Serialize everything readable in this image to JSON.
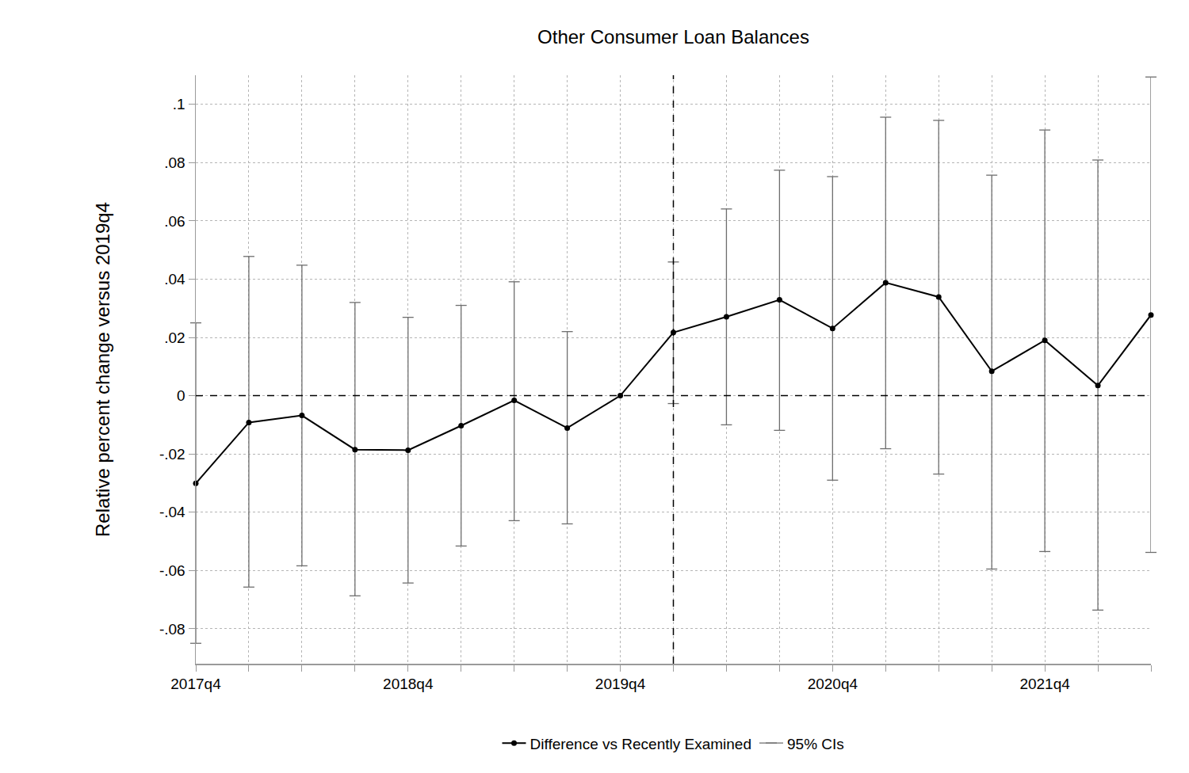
{
  "chart_data": {
    "type": "line",
    "title": "Other Consumer Loan Balances",
    "y_label": "Relative percent change versus 2019q4",
    "categories": [
      "2017q4",
      null,
      null,
      null,
      "2018q4",
      null,
      null,
      null,
      "2019q4",
      null,
      null,
      null,
      "2020q4",
      null,
      null,
      null,
      "2021q4",
      null,
      null
    ],
    "series": [
      {
        "name": "Difference vs Recently Examined",
        "color": "#000000",
        "marker": "circle",
        "line_style": "solid",
        "values": [
          -0.0301,
          -0.0092,
          -0.0068,
          -0.0185,
          -0.0187,
          -0.0103,
          -0.0016,
          -0.0111,
          0,
          0.0217,
          0.0271,
          0.0329,
          0.0231,
          0.0388,
          0.0339,
          0.0084,
          0.019,
          0.0035,
          0.0277
        ],
        "ci_name": "95% CIs",
        "ci_upper": [
          0.025,
          0.0478,
          0.0448,
          0.032,
          0.0269,
          0.031,
          0.0391,
          0.022,
          null,
          0.0459,
          0.0641,
          0.0774,
          0.0752,
          0.0956,
          0.0945,
          0.0757,
          0.0912,
          0.0809,
          0.1094
        ],
        "ci_lower": [
          -0.085,
          -0.0657,
          -0.0584,
          -0.0687,
          -0.0643,
          -0.0516,
          -0.0429,
          -0.044,
          null,
          -0.0027,
          -0.01,
          -0.0119,
          -0.029,
          -0.0182,
          -0.0269,
          -0.0595,
          -0.0535,
          -0.0736,
          -0.0538
        ]
      }
    ],
    "ylim": [
      -0.092,
      0.11
    ],
    "yticks": [
      {
        "value": -0.08,
        "label": "-.08"
      },
      {
        "value": -0.06,
        "label": "-.06"
      },
      {
        "value": -0.04,
        "label": "-.04"
      },
      {
        "value": -0.02,
        "label": "-.02"
      },
      0,
      {
        "value": 0.02,
        "label": ".02"
      },
      {
        "value": 0.04,
        "label": ".04"
      },
      {
        "value": 0.06,
        "label": ".06"
      },
      {
        "value": 0.08,
        "label": ".08"
      },
      {
        "value": 0.1,
        "label": ".1"
      }
    ],
    "grid": true,
    "legend": "bottom"
  }
}
